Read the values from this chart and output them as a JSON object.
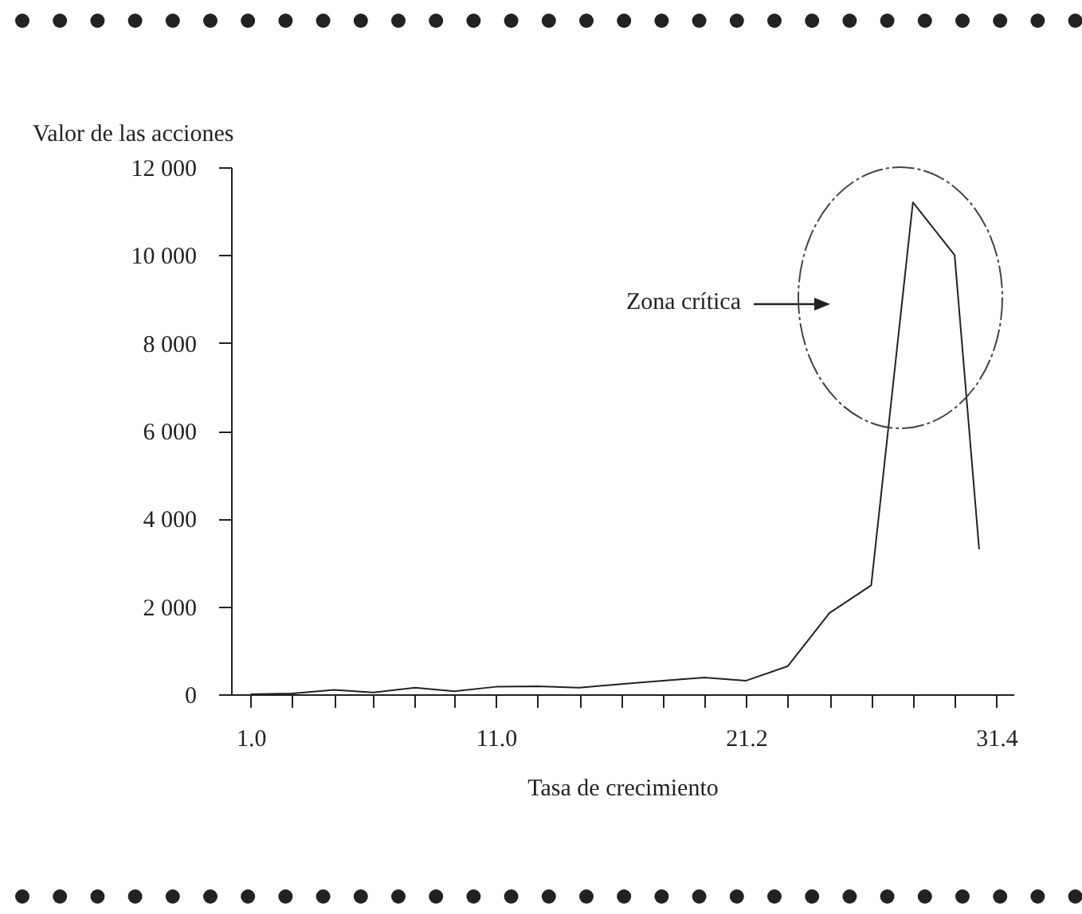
{
  "chart_data": {
    "type": "line",
    "xlabel": "Tasa de crecimiento",
    "ylabel": "Valor de las acciones",
    "annotations": [
      "Zona crítica"
    ],
    "x": [
      1.0,
      2.7,
      4.4,
      6.0,
      7.7,
      9.3,
      11.0,
      12.7,
      14.4,
      16.1,
      17.8,
      19.5,
      21.2,
      22.9,
      24.6,
      26.3,
      28.0,
      29.7,
      30.7
    ],
    "series": [
      {
        "color": "#222222",
        "values": [
          0,
          20,
          100,
          40,
          150,
          70,
          170,
          180,
          150,
          230,
          310,
          380,
          310,
          640,
          1850,
          2480,
          11200,
          10000,
          3300
        ]
      }
    ],
    "xlim": [
      0.2,
      32.1
    ],
    "ylim": [
      0,
      12000
    ],
    "xticks": [
      {
        "value": 1.0,
        "label": "1.0"
      },
      {
        "value": 2.7,
        "label": null
      },
      {
        "value": 4.4,
        "label": null
      },
      {
        "value": 6.0,
        "label": null
      },
      {
        "value": 7.7,
        "label": null
      },
      {
        "value": 9.3,
        "label": null
      },
      {
        "value": 11.0,
        "label": "11.0"
      },
      {
        "value": 12.7,
        "label": null
      },
      {
        "value": 14.4,
        "label": null
      },
      {
        "value": 16.1,
        "label": null
      },
      {
        "value": 17.8,
        "label": null
      },
      {
        "value": 19.5,
        "label": null
      },
      {
        "value": 21.2,
        "label": "21.2"
      },
      {
        "value": 22.9,
        "label": null
      },
      {
        "value": 24.6,
        "label": null
      },
      {
        "value": 26.3,
        "label": null
      },
      {
        "value": 28.0,
        "label": null
      },
      {
        "value": 29.7,
        "label": null
      },
      {
        "value": 31.4,
        "label": "31.4"
      }
    ],
    "yticks": [
      {
        "value": 0,
        "label": "0"
      },
      {
        "value": 2000,
        "label": "2 000"
      },
      {
        "value": 4000,
        "label": "4 000"
      },
      {
        "value": 6000,
        "label": "6 000"
      },
      {
        "value": 8000,
        "label": "8 000"
      },
      {
        "value": 10000,
        "label": "10 000"
      },
      {
        "value": 12000,
        "label": "12 000"
      }
    ],
    "grid": false,
    "marker": "none",
    "line_style": "solid"
  }
}
